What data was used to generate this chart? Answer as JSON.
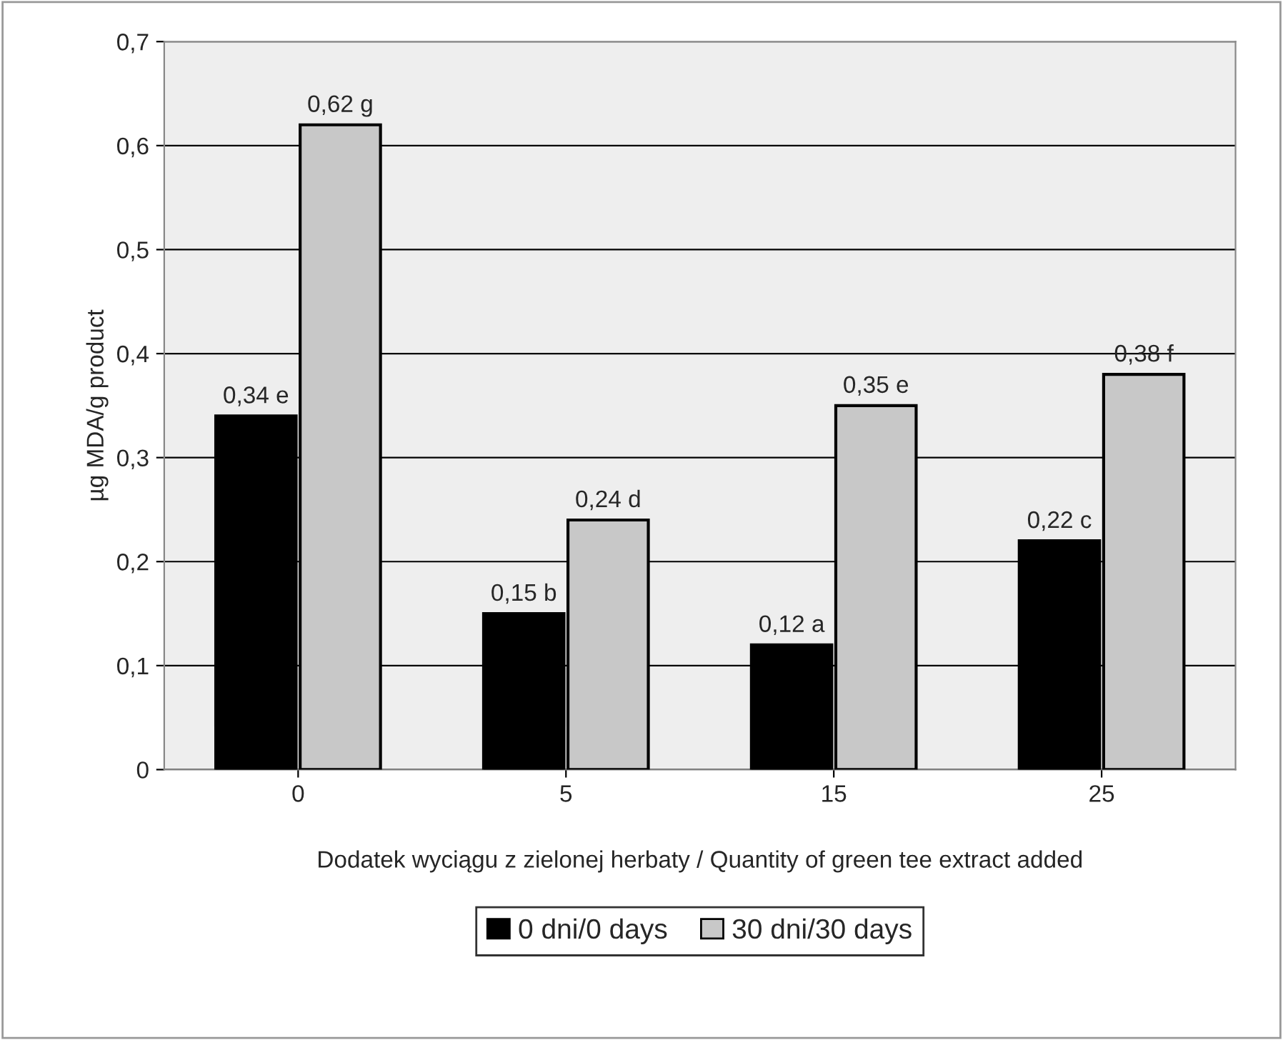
{
  "chart_data": {
    "type": "bar",
    "xlabel": "Dodatek wyciągu z zielonej herbaty / Quantity of green tee extract added",
    "ylabel": "µg MDA/g product",
    "categories": [
      "0",
      "5",
      "15",
      "25"
    ],
    "series": [
      {
        "name": "0 dni/0 days",
        "color": "#000000",
        "values": [
          0.34,
          0.15,
          0.12,
          0.22
        ],
        "value_labels": [
          "0,34 e",
          "0,15 b",
          "0,12 a",
          "0,22 c"
        ]
      },
      {
        "name": "30 dni/30 days",
        "color": "#c8c8c8",
        "values": [
          0.62,
          0.24,
          0.35,
          0.38
        ],
        "value_labels": [
          "0,62 g",
          "0,24 d",
          "0,35 e",
          "0,38 f"
        ]
      }
    ],
    "ylim": [
      0,
      0.7
    ],
    "yticks": [
      {
        "value": 0,
        "label": "0"
      },
      {
        "value": 0.1,
        "label": "0,1"
      },
      {
        "value": 0.2,
        "label": "0,2"
      },
      {
        "value": 0.3,
        "label": "0,3"
      },
      {
        "value": 0.4,
        "label": "0,4"
      },
      {
        "value": 0.5,
        "label": "0,5"
      },
      {
        "value": 0.6,
        "label": "0,6"
      },
      {
        "value": 0.7,
        "label": "0,7"
      }
    ],
    "grid": "y",
    "legend": "bottom"
  }
}
